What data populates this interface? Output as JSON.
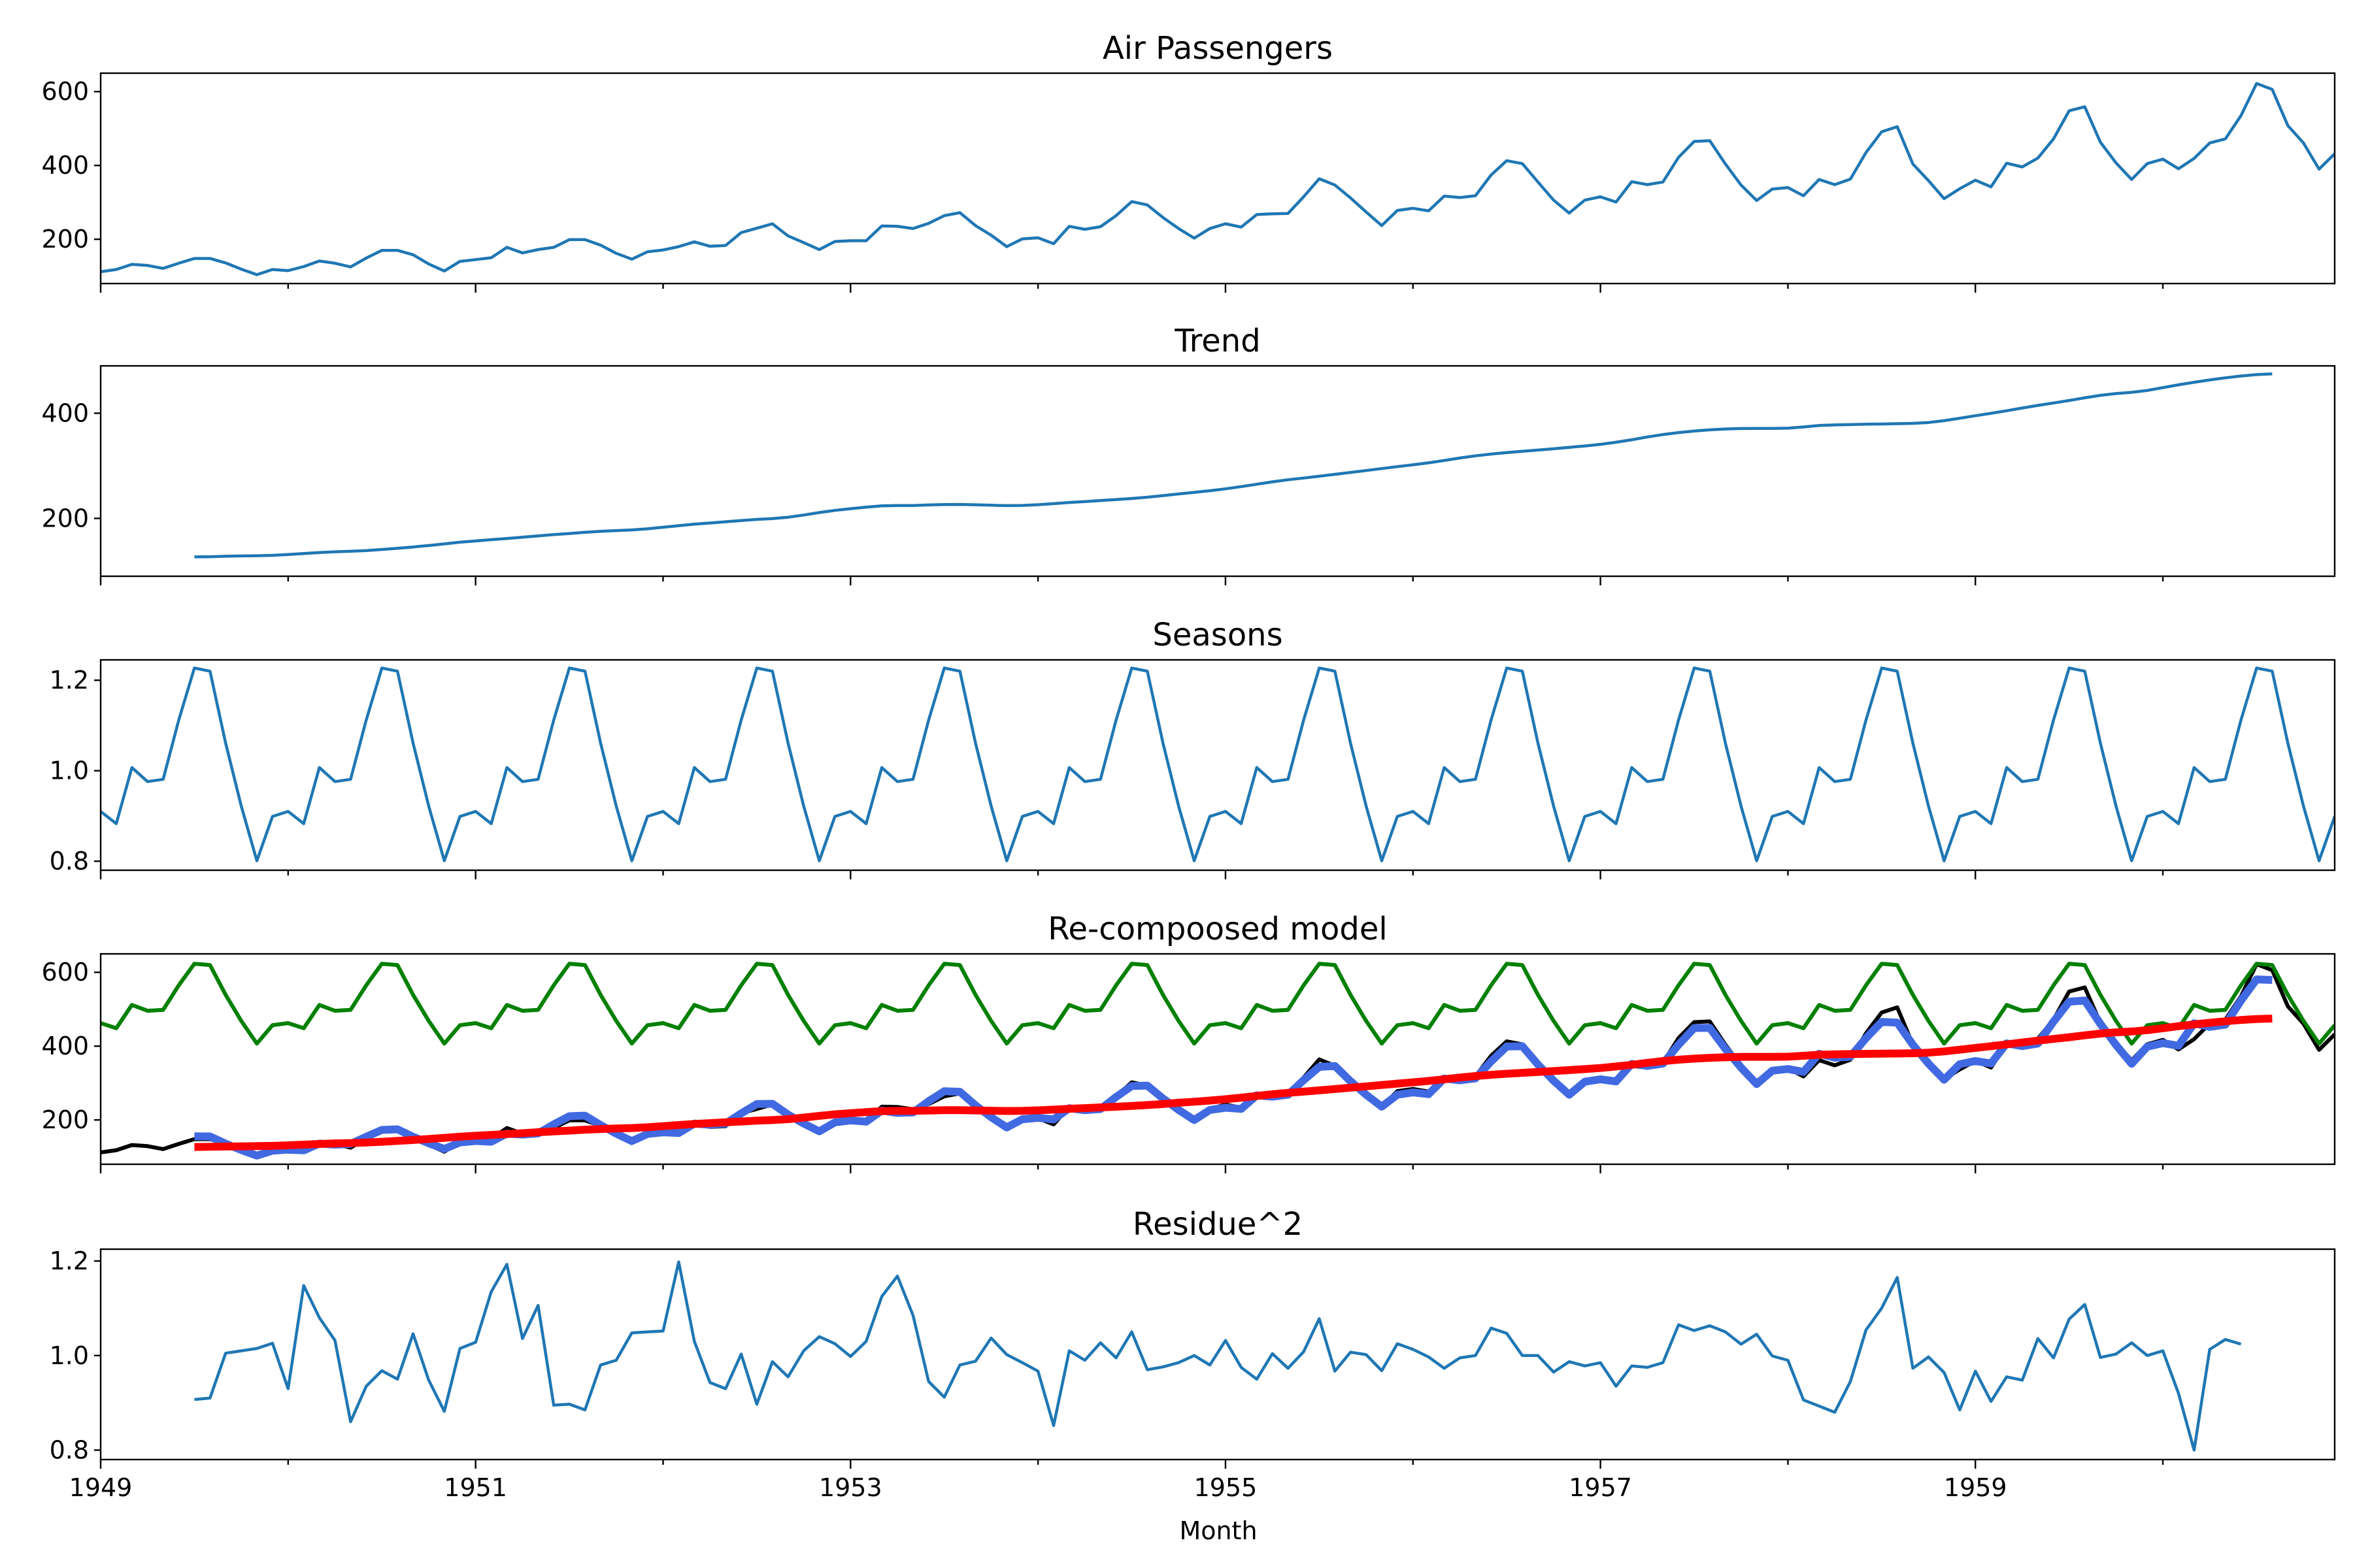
{
  "figure": {
    "xlabel": "Month",
    "x_ticks": [
      "1949",
      "1951",
      "1953",
      "1955",
      "1957",
      "1959"
    ],
    "colors": {
      "blue": "#1f77b4",
      "black": "#000000",
      "green": "#008000",
      "royalblue": "#4169e1",
      "red": "#ff0000"
    }
  },
  "chart_data": [
    {
      "type": "line",
      "title": "Air Passengers",
      "xlabel": "Month",
      "ylabel": "",
      "x_start": "1949-01",
      "x_end": "1960-12",
      "xlim": [
        "1949-01",
        "1960-12"
      ],
      "ylim": [
        80,
        650
      ],
      "y_ticks": [
        "200",
        "400",
        "600"
      ],
      "series": [
        {
          "color": "#1f77b4",
          "start": "1949-01",
          "values": [
            112,
            118,
            132,
            129,
            121,
            135,
            148,
            148,
            136,
            119,
            104,
            118,
            115,
            126,
            141,
            135,
            125,
            149,
            170,
            170,
            158,
            133,
            114,
            140,
            145,
            150,
            178,
            163,
            172,
            178,
            199,
            199,
            184,
            162,
            146,
            166,
            171,
            180,
            193,
            181,
            183,
            218,
            230,
            242,
            209,
            191,
            172,
            194,
            196,
            196,
            236,
            235,
            229,
            243,
            264,
            272,
            237,
            211,
            180,
            201,
            204,
            188,
            235,
            227,
            234,
            264,
            302,
            293,
            259,
            229,
            203,
            229,
            242,
            233,
            267,
            269,
            270,
            315,
            364,
            347,
            312,
            274,
            237,
            278,
            284,
            277,
            317,
            313,
            318,
            374,
            413,
            405,
            355,
            306,
            271,
            306,
            315,
            301,
            356,
            348,
            355,
            422,
            465,
            467,
            404,
            347,
            305,
            336,
            340,
            318,
            362,
            348,
            363,
            435,
            491,
            505,
            404,
            359,
            310,
            337,
            360,
            342,
            406,
            396,
            420,
            472,
            548,
            559,
            463,
            407,
            362,
            405,
            417,
            391,
            419,
            461,
            472,
            535,
            622,
            606,
            508,
            461,
            390,
            432
          ]
        }
      ]
    },
    {
      "type": "line",
      "title": "Trend",
      "xlim": [
        "1949-01",
        "1960-12"
      ],
      "ylim": [
        90,
        490
      ],
      "y_ticks": [
        "200",
        "400"
      ],
      "series": [
        {
          "color": "#1f77b4",
          "start": "1949-07",
          "values": [
            126.8,
            127.2,
            127.96,
            128.58,
            129.0,
            129.75,
            131.25,
            133.08,
            134.92,
            136.42,
            137.42,
            138.75,
            140.92,
            143.17,
            145.71,
            148.42,
            151.54,
            154.71,
            157.12,
            159.54,
            161.83,
            164.17,
            166.67,
            169.08,
            171.25,
            173.58,
            175.46,
            176.83,
            178.04,
            180.17,
            183.12,
            186.21,
            189.04,
            191.29,
            193.58,
            195.83,
            198.04,
            199.75,
            202.21,
            206.42,
            211.12,
            215.25,
            218.5,
            221.33,
            223.88,
            224.58,
            224.46,
            225.54,
            226.42,
            226.46,
            225.88,
            225.0,
            224.25,
            224.71,
            226.04,
            228.04,
            230.25,
            232.04,
            233.96,
            235.83,
            237.88,
            240.33,
            243.25,
            246.54,
            249.46,
            252.67,
            256.21,
            260.38,
            264.96,
            269.54,
            273.42,
            276.75,
            280.21,
            283.79,
            287.38,
            290.96,
            294.67,
            298.42,
            301.96,
            305.71,
            310.08,
            314.83,
            318.92,
            322.29,
            325.21,
            327.58,
            329.92,
            332.42,
            335.04,
            337.67,
            340.75,
            344.75,
            349.5,
            354.79,
            359.46,
            363.17,
            366.04,
            368.42,
            370.0,
            370.83,
            371.0,
            371.0,
            371.46,
            373.79,
            376.71,
            377.75,
            378.38,
            379.12,
            379.5,
            380.0,
            380.71,
            382.33,
            385.79,
            390.38,
            395.21,
            399.83,
            404.71,
            409.92,
            414.88,
            419.46,
            424.12,
            429.25,
            434.0,
            437.38,
            439.67,
            443.25,
            448.62,
            454.0,
            458.83,
            463.25,
            467.25,
            470.79,
            473.33,
            474.75
          ]
        }
      ]
    },
    {
      "type": "line",
      "title": "Seasons",
      "xlim": [
        "1949-01",
        "1960-12"
      ],
      "ylim": [
        0.78,
        1.245
      ],
      "y_ticks": [
        "0.8",
        "1.0",
        "1.2"
      ],
      "series": [
        {
          "color": "#1f77b4",
          "start": "1949-01",
          "pattern": [
            0.91,
            0.883,
            1.007,
            0.976,
            0.981,
            1.112,
            1.227,
            1.22,
            1.061,
            0.922,
            0.801,
            0.899
          ]
        }
      ]
    },
    {
      "type": "line",
      "title": "Re-compoosed model",
      "xlim": [
        "1949-01",
        "1960-12"
      ],
      "ylim": [
        80,
        650
      ],
      "y_ticks": [
        "200",
        "400",
        "600"
      ],
      "series": [
        {
          "color": "#000000",
          "kind": "observed"
        },
        {
          "color": "#4169e1",
          "kind": "trend_times_season"
        },
        {
          "color": "#008000",
          "kind": "season_scaled",
          "scale": 508
        },
        {
          "color": "#ff0000",
          "kind": "trend"
        }
      ]
    },
    {
      "type": "line",
      "title": "Residue^2",
      "xlabel": "Month",
      "xlim": [
        "1949-01",
        "1960-12"
      ],
      "ylim": [
        0.78,
        1.225
      ],
      "y_ticks": [
        "0.8",
        "1.0",
        "1.2"
      ],
      "series": [
        {
          "color": "#1f77b4",
          "start": "1949-07",
          "values": [
            0.907,
            0.91,
            1.005,
            1.01,
            1.015,
            1.026,
            0.93,
            1.148,
            1.08,
            1.032,
            0.86,
            0.935,
            0.968,
            0.95,
            1.046,
            0.948,
            0.882,
            1.015,
            1.028,
            1.135,
            1.193,
            1.036,
            1.106,
            0.895,
            0.897,
            0.885,
            0.98,
            0.99,
            1.048,
            1.05,
            1.052,
            1.198,
            1.03,
            0.943,
            0.93,
            1.003,
            0.897,
            0.987,
            0.955,
            1.01,
            1.04,
            1.025,
            0.998,
            1.03,
            1.125,
            1.168,
            1.085,
            0.945,
            0.912,
            0.98,
            0.988,
            1.037,
            1.002,
            0.985,
            0.967,
            0.852,
            1.01,
            0.99,
            1.027,
            0.995,
            1.05,
            0.97,
            0.976,
            0.985,
            1.0,
            0.98,
            1.032,
            0.975,
            0.95,
            1.004,
            0.973,
            1.008,
            1.078,
            0.967,
            1.007,
            1.002,
            0.968,
            1.025,
            1.013,
            0.997,
            0.973,
            0.995,
            1.0,
            1.058,
            1.047,
            1.0,
            1.0,
            0.965,
            0.987,
            0.978,
            0.985,
            0.935,
            0.978,
            0.975,
            0.985,
            1.065,
            1.053,
            1.063,
            1.05,
            1.024,
            1.045,
            0.999,
            0.99,
            0.906,
            0.893,
            0.88,
            0.945,
            1.054,
            1.1,
            1.165,
            0.973,
            0.997,
            0.964,
            0.885,
            0.967,
            0.903,
            0.955,
            0.948,
            1.036,
            0.995,
            1.077,
            1.108,
            0.996,
            1.003,
            1.027,
            1.0,
            1.01,
            0.92,
            0.8,
            1.013,
            1.034,
            1.024
          ]
        }
      ]
    }
  ]
}
